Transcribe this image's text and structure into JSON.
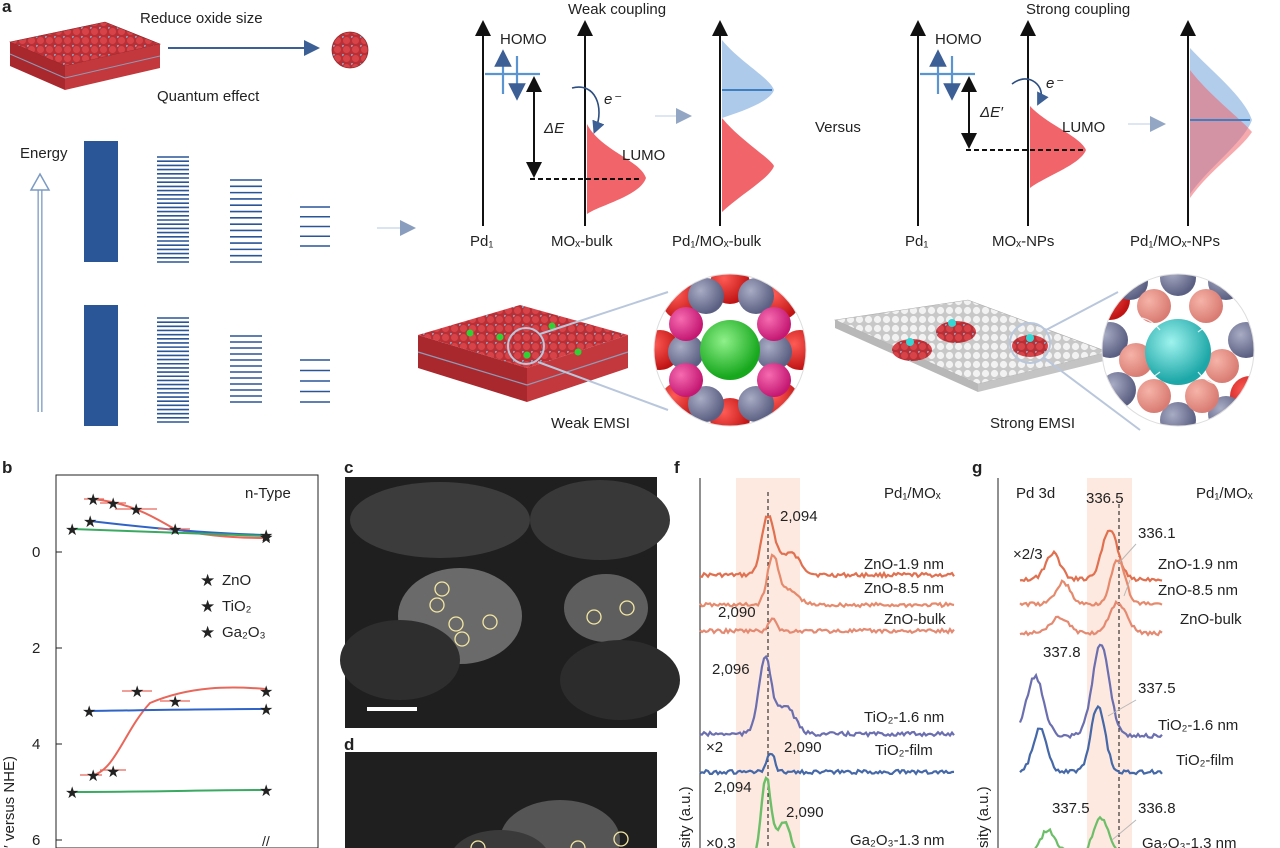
{
  "panel_letters": [
    "a",
    "b",
    "c",
    "d",
    "f",
    "g"
  ],
  "panel_a": {
    "reduce_label": "Reduce oxide size",
    "quantum_label": "Quantum effect",
    "energy_label": "Energy",
    "weak_coupling": "Weak coupling",
    "strong_coupling": "Strong coupling",
    "versus": "Versus",
    "homo": "HOMO",
    "lumo": "LUMO",
    "electron": "e⁻",
    "delta_e": "ΔE",
    "delta_e_prime": "ΔE′",
    "pd1": "Pd₁",
    "mox_bulk": "MOₓ-bulk",
    "pd1_mox_bulk": "Pd₁/MOₓ-bulk",
    "mox_nps": "MOₓ-NPs",
    "pd1_mox_nps": "Pd₁/MOₓ-NPs",
    "weak_emsi": "Weak EMSI",
    "strong_emsi": "Strong EMSI"
  },
  "panel_b": {
    "corner_label": "n-Type",
    "ylabel": "′ versus NHE)",
    "yticks": [
      "0",
      "2",
      "4",
      "6"
    ],
    "axis_break": "//",
    "legend": [
      "ZnO",
      "TiO₂",
      "Ga₂O₃"
    ]
  },
  "panel_f": {
    "title": "Pd₁/MOₓ",
    "ylabel": "sity (a.u.)",
    "peaks": [
      "2,094",
      "2,090",
      "2,096",
      "2,090",
      "2,094",
      "2,090"
    ],
    "samples": [
      "ZnO-1.9 nm",
      "ZnO-8.5 nm",
      "ZnO-bulk",
      "TiO₂-1.6 nm",
      "TiO₂-film",
      "Ga₂O₃-1.3 nm"
    ],
    "scales": [
      "×2",
      "×0.3"
    ]
  },
  "panel_g": {
    "title": "Pd₁/MOₓ",
    "region": "Pd 3d",
    "peaks": [
      "336.5",
      "336.1",
      "337.8",
      "337.5",
      "337.5",
      "336.8"
    ],
    "samples": [
      "ZnO-1.9 nm",
      "ZnO-8.5 nm",
      "ZnO-bulk",
      "TiO₂-1.6 nm",
      "TiO₂-film",
      "Ga₂O₃-1.3 nm"
    ],
    "scale": "×2/3"
  },
  "colors": {
    "zno": "#e8675a",
    "tio2": "#2f63c6",
    "ga2o3": "#3aa962",
    "band": "#2a5597",
    "lumo_fill": "#f0646a",
    "homo_fill": "#9fc1e6"
  }
}
